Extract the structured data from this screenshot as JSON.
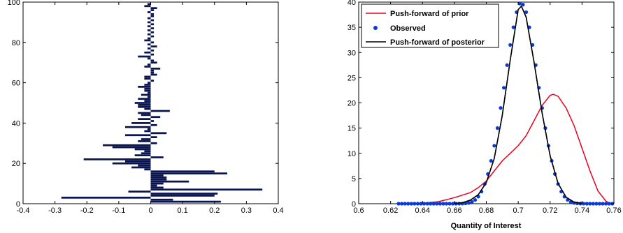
{
  "chart_data": [
    {
      "type": "bar",
      "orientation": "horizontal",
      "color": "#0a1550",
      "title": "",
      "xlabel": "",
      "ylabel": "",
      "xlim": [
        -0.4,
        0.4
      ],
      "ylim": [
        0,
        100
      ],
      "xticks": [
        -0.4,
        -0.3,
        -0.2,
        -0.1,
        0,
        0.1,
        0.2,
        0.3,
        0.4
      ],
      "xtick_labels": [
        "-0.4",
        "-0.3",
        "-0.2",
        "-0.1",
        "0",
        "0.1",
        "0.2",
        "0.3",
        "0.4"
      ],
      "yticks": [
        0,
        20,
        40,
        60,
        80,
        100
      ],
      "ytick_labels": [
        "0",
        "20",
        "40",
        "60",
        "80",
        "100"
      ],
      "categories": [
        1,
        2,
        3,
        4,
        5,
        6,
        7,
        8,
        9,
        10,
        11,
        12,
        13,
        14,
        15,
        16,
        17,
        18,
        19,
        20,
        21,
        22,
        23,
        24,
        25,
        26,
        27,
        28,
        29,
        30,
        31,
        32,
        33,
        34,
        35,
        36,
        37,
        38,
        39,
        40,
        41,
        42,
        43,
        44,
        45,
        46,
        47,
        48,
        49,
        50,
        51,
        52,
        53,
        54,
        55,
        56,
        57,
        58,
        59,
        60,
        61,
        62,
        63,
        64,
        65,
        66,
        67,
        68,
        69,
        70,
        71,
        72,
        73,
        74,
        75,
        76,
        77,
        78,
        79,
        80,
        81,
        82,
        83,
        84,
        85,
        86,
        87,
        88,
        89,
        90,
        91,
        92,
        93,
        94,
        95,
        96,
        97,
        98,
        99
      ],
      "values": [
        0.22,
        0.07,
        -0.28,
        0.2,
        0.21,
        -0.07,
        0.35,
        0.04,
        0.02,
        0.04,
        0.12,
        0.05,
        0.05,
        0.04,
        0.24,
        0.2,
        -0.02,
        -0.06,
        -0.04,
        -0.12,
        -0.08,
        -0.21,
        0.04,
        -0.05,
        -0.03,
        -0.02,
        -0.05,
        -0.12,
        -0.15,
        0.02,
        -0.04,
        -0.03,
        0.02,
        -0.08,
        0.05,
        -0.02,
        -0.01,
        -0.08,
        0.02,
        -0.06,
        0.01,
        -0.04,
        0.03,
        -0.03,
        -0.04,
        0.06,
        -0.02,
        -0.04,
        -0.04,
        -0.05,
        -0.02,
        -0.04,
        -0.01,
        -0.03,
        -0.01,
        -0.02,
        -0.02,
        -0.04,
        -0.02,
        -0.01,
        0.01,
        -0.02,
        -0.02,
        0.02,
        0.01,
        0.01,
        0.03,
        -0.02,
        -0.01,
        0.02,
        0.01,
        -0.01,
        -0.04,
        0.01,
        -0.02,
        0.01,
        -0.01,
        0.02,
        -0.01,
        0.01,
        -0.02,
        -0.01,
        0.01,
        -0.01,
        0.01,
        -0.01,
        0.01,
        -0.01,
        0.01,
        -0.01,
        0.01,
        -0.01,
        0.01,
        0.01,
        -0.01,
        0.01,
        0.02,
        -0.02,
        -0.01
      ]
    },
    {
      "type": "line",
      "title": "",
      "xlabel": "Quantity of Interest",
      "ylabel": "",
      "xlim": [
        0.6,
        0.76
      ],
      "ylim": [
        0,
        40
      ],
      "xticks": [
        0.6,
        0.62,
        0.64,
        0.66,
        0.68,
        0.7,
        0.72,
        0.74,
        0.76
      ],
      "xtick_labels": [
        "0.6",
        "0.62",
        "0.64",
        "0.66",
        "0.68",
        "0.7",
        "0.72",
        "0.74",
        "0.76"
      ],
      "yticks": [
        0,
        5,
        10,
        15,
        20,
        25,
        30,
        35,
        40
      ],
      "ytick_labels": [
        "0",
        "5",
        "10",
        "15",
        "20",
        "25",
        "30",
        "35",
        "40"
      ],
      "legend_position": "top-left",
      "series": [
        {
          "name": "Push-forward of prior",
          "color": "#e8001c",
          "style": "line",
          "x": [
            0.625,
            0.64,
            0.65,
            0.66,
            0.67,
            0.675,
            0.68,
            0.685,
            0.69,
            0.695,
            0.7,
            0.705,
            0.71,
            0.715,
            0.72,
            0.722,
            0.725,
            0.73,
            0.735,
            0.74,
            0.745,
            0.75,
            0.755,
            0.758
          ],
          "values": [
            0,
            0.1,
            0.4,
            1.2,
            2.2,
            3.2,
            4.5,
            6.5,
            8.5,
            10.0,
            11.5,
            13.5,
            16.5,
            19.5,
            21.5,
            21.7,
            21.3,
            19.0,
            15.5,
            11.0,
            6.5,
            2.5,
            0.5,
            0
          ]
        },
        {
          "name": "Observed",
          "color": "#0a3ad6",
          "style": "markers",
          "x": [
            0.625,
            0.627,
            0.629,
            0.631,
            0.633,
            0.635,
            0.637,
            0.639,
            0.641,
            0.643,
            0.645,
            0.647,
            0.649,
            0.651,
            0.653,
            0.655,
            0.657,
            0.659,
            0.661,
            0.663,
            0.665,
            0.667,
            0.669,
            0.671,
            0.673,
            0.675,
            0.677,
            0.679,
            0.681,
            0.683,
            0.685,
            0.687,
            0.689,
            0.691,
            0.693,
            0.695,
            0.697,
            0.699,
            0.701,
            0.703,
            0.705,
            0.707,
            0.709,
            0.711,
            0.713,
            0.715,
            0.717,
            0.719,
            0.721,
            0.723,
            0.725,
            0.727,
            0.729,
            0.731,
            0.733,
            0.735,
            0.737,
            0.739,
            0.741,
            0.743,
            0.745,
            0.747,
            0.749,
            0.751,
            0.753,
            0.755,
            0.757,
            0.759
          ],
          "values": [
            0,
            0,
            0,
            0,
            0,
            0,
            0,
            0,
            0,
            0,
            0,
            0,
            0,
            0,
            0,
            0,
            0,
            0,
            0,
            0.01,
            0.02,
            0.06,
            0.15,
            0.35,
            0.75,
            1.4,
            2.4,
            3.9,
            5.9,
            8.5,
            11.5,
            15.0,
            19.0,
            23.0,
            27.5,
            31.5,
            35.0,
            38.0,
            39.7,
            39.5,
            38.0,
            35.0,
            31.5,
            27.5,
            23.0,
            19.0,
            15.0,
            11.5,
            8.5,
            5.9,
            3.9,
            2.4,
            1.4,
            0.75,
            0.35,
            0.15,
            0.06,
            0.02,
            0.01,
            0,
            0,
            0,
            0,
            0,
            0,
            0,
            0,
            0
          ]
        },
        {
          "name": "Push-forward of posterior",
          "color": "#000000",
          "style": "line",
          "x": [
            0.66,
            0.665,
            0.67,
            0.675,
            0.68,
            0.685,
            0.69,
            0.695,
            0.7,
            0.702,
            0.705,
            0.71,
            0.715,
            0.72,
            0.725,
            0.73,
            0.735,
            0.74
          ],
          "values": [
            0.05,
            0.2,
            0.7,
            1.8,
            4.2,
            9.0,
            17.5,
            28.5,
            38.5,
            39.2,
            37.0,
            28.0,
            18.0,
            9.5,
            4.0,
            1.3,
            0.3,
            0.05
          ]
        }
      ]
    }
  ]
}
